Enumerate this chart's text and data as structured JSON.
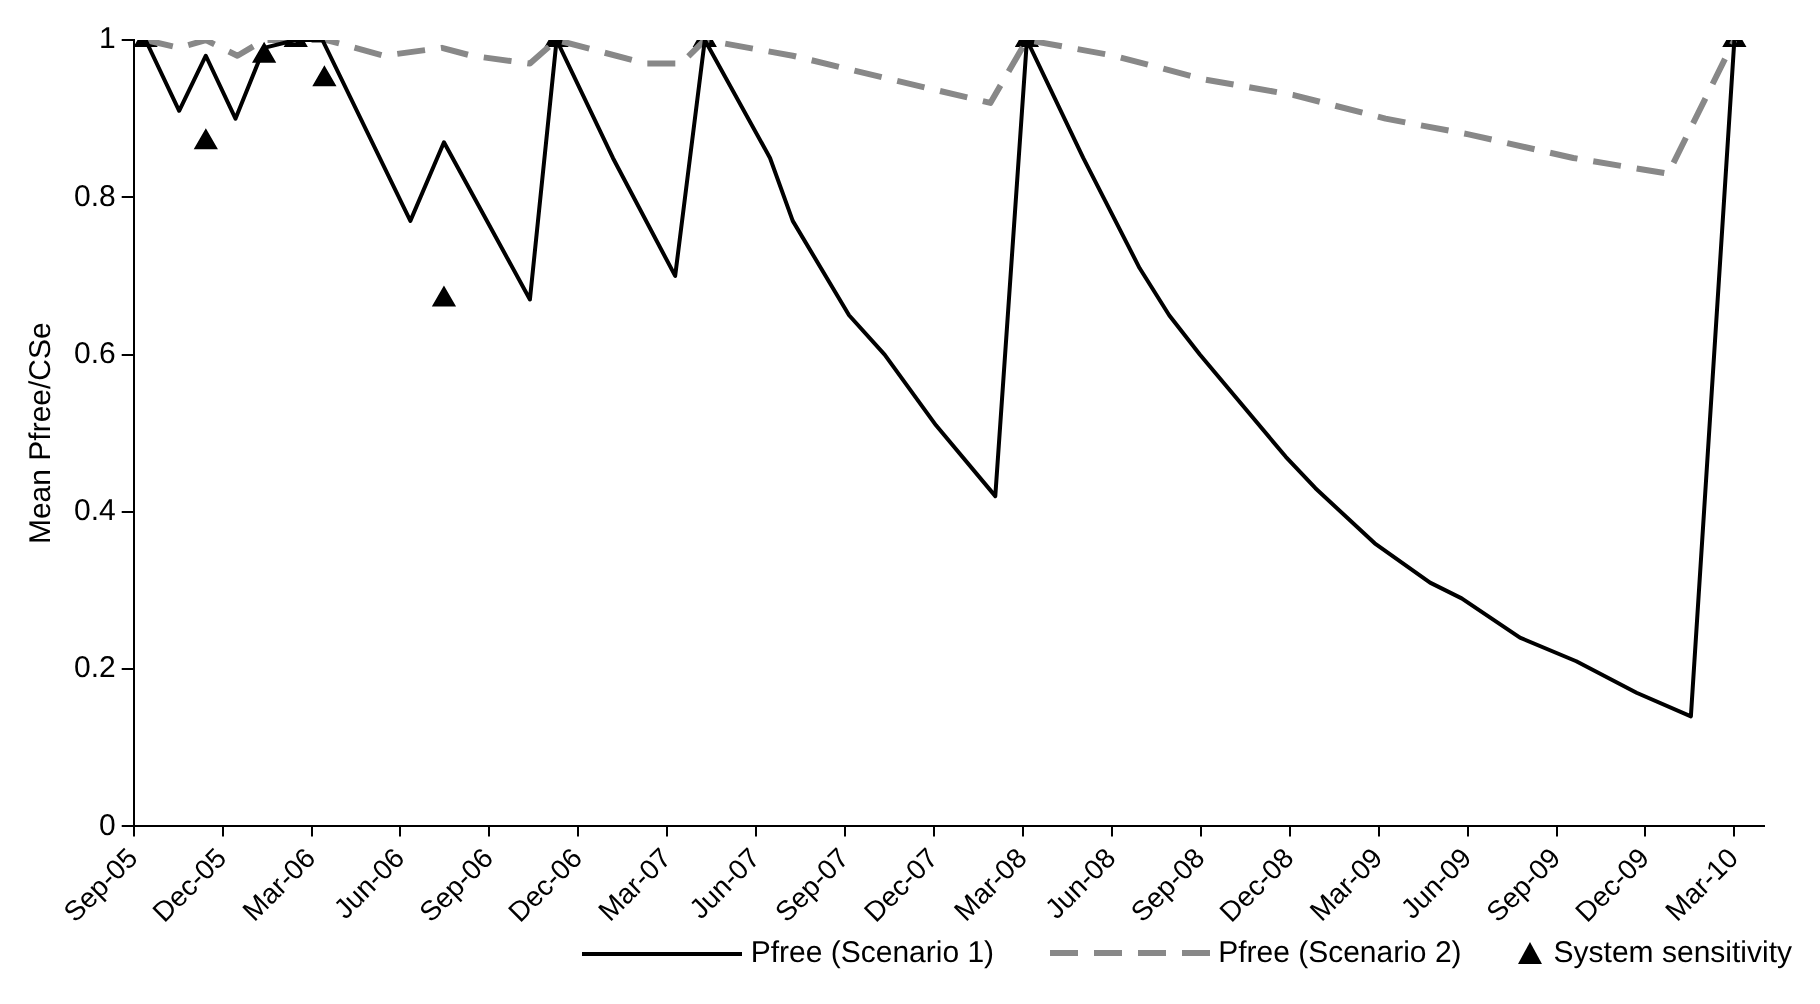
{
  "chart_data": {
    "type": "line",
    "ylabel": "Mean Pfree/CSe",
    "xlim": [
      "2005-09-01",
      "2010-04-01"
    ],
    "ylim": [
      0,
      1
    ],
    "yticks": [
      0,
      0.2,
      0.4,
      0.6,
      0.8,
      1
    ],
    "xticks": [
      {
        "value": "2005-09-01",
        "label": "Sep-05"
      },
      {
        "value": "2005-12-01",
        "label": "Dec-05"
      },
      {
        "value": "2006-03-01",
        "label": "Mar-06"
      },
      {
        "value": "2006-06-01",
        "label": "Jun-06"
      },
      {
        "value": "2006-09-01",
        "label": "Sep-06"
      },
      {
        "value": "2006-12-01",
        "label": "Dec-06"
      },
      {
        "value": "2007-03-01",
        "label": "Mar-07"
      },
      {
        "value": "2007-06-01",
        "label": "Jun-07"
      },
      {
        "value": "2007-09-01",
        "label": "Sep-07"
      },
      {
        "value": "2007-12-01",
        "label": "Dec-07"
      },
      {
        "value": "2008-03-01",
        "label": "Mar-08"
      },
      {
        "value": "2008-06-01",
        "label": "Jun-08"
      },
      {
        "value": "2008-09-01",
        "label": "Sep-08"
      },
      {
        "value": "2008-12-01",
        "label": "Dec-08"
      },
      {
        "value": "2009-03-01",
        "label": "Mar-09"
      },
      {
        "value": "2009-06-01",
        "label": "Jun-09"
      },
      {
        "value": "2009-09-01",
        "label": "Sep-09"
      },
      {
        "value": "2009-12-01",
        "label": "Dec-09"
      },
      {
        "value": "2010-03-01",
        "label": "Mar-10"
      }
    ],
    "grid": false,
    "legend": "bottom",
    "series": [
      {
        "name": "Pfree (Scenario 1)",
        "line_style": "solid",
        "marker": "none",
        "color": "#000000",
        "x": [
          "2005-09-13",
          "2005-10-17",
          "2005-11-14",
          "2005-12-14",
          "2006-01-13",
          "2006-02-15",
          "2006-03-12",
          "2006-06-11",
          "2006-07-15",
          "2006-10-12",
          "2006-11-09",
          "2007-01-06",
          "2007-03-09",
          "2007-04-09",
          "2007-06-15",
          "2007-07-08",
          "2007-09-05",
          "2007-10-11",
          "2007-12-03",
          "2008-02-03",
          "2008-03-05",
          "2008-05-02",
          "2008-06-29",
          "2008-07-29",
          "2008-08-30",
          "2008-11-27",
          "2008-12-27",
          "2009-02-27",
          "2009-04-23",
          "2009-05-25",
          "2009-07-24",
          "2009-09-21",
          "2009-11-22",
          "2010-01-17",
          "2010-03-01"
        ],
        "values": [
          1,
          0.91,
          0.98,
          0.9,
          0.99,
          1,
          1,
          0.77,
          0.87,
          0.67,
          1,
          0.85,
          0.7,
          1,
          0.85,
          0.77,
          0.65,
          0.6,
          0.51,
          0.42,
          1,
          0.85,
          0.71,
          0.65,
          0.6,
          0.47,
          0.43,
          0.36,
          0.31,
          0.29,
          0.24,
          0.21,
          0.17,
          0.14,
          1
        ]
      },
      {
        "name": "Pfree (Scenario 2)",
        "line_style": "dashed",
        "marker": "none",
        "color": "#888888",
        "x": [
          "2005-09-13",
          "2005-10-17",
          "2005-11-14",
          "2005-12-16",
          "2006-01-13",
          "2006-03-16",
          "2006-05-14",
          "2006-07-13",
          "2006-08-13",
          "2006-10-12",
          "2006-11-09",
          "2007-02-09",
          "2007-03-15",
          "2007-04-09",
          "2007-07-08",
          "2007-10-17",
          "2008-01-28",
          "2008-03-05",
          "2008-06-03",
          "2008-09-04",
          "2008-12-05",
          "2009-03-08",
          "2009-06-02",
          "2009-09-18",
          "2009-12-24",
          "2010-03-01"
        ],
        "values": [
          1,
          0.99,
          1,
          0.98,
          1,
          1,
          0.98,
          0.99,
          0.98,
          0.97,
          1,
          0.97,
          0.97,
          1,
          0.98,
          0.95,
          0.92,
          1,
          0.98,
          0.95,
          0.93,
          0.9,
          0.88,
          0.85,
          0.83,
          1
        ]
      },
      {
        "name": "System sensitivity",
        "type": "scatter",
        "marker": "triangle",
        "color": "#000000",
        "x": [
          "2005-09-13",
          "2005-11-14",
          "2006-01-13",
          "2006-02-15",
          "2006-03-14",
          "2006-07-15",
          "2006-11-09",
          "2007-04-09",
          "2008-03-05",
          "2010-03-01"
        ],
        "values": [
          1,
          0.87,
          0.98,
          1,
          0.95,
          0.67,
          1,
          1,
          1,
          1
        ]
      }
    ]
  }
}
